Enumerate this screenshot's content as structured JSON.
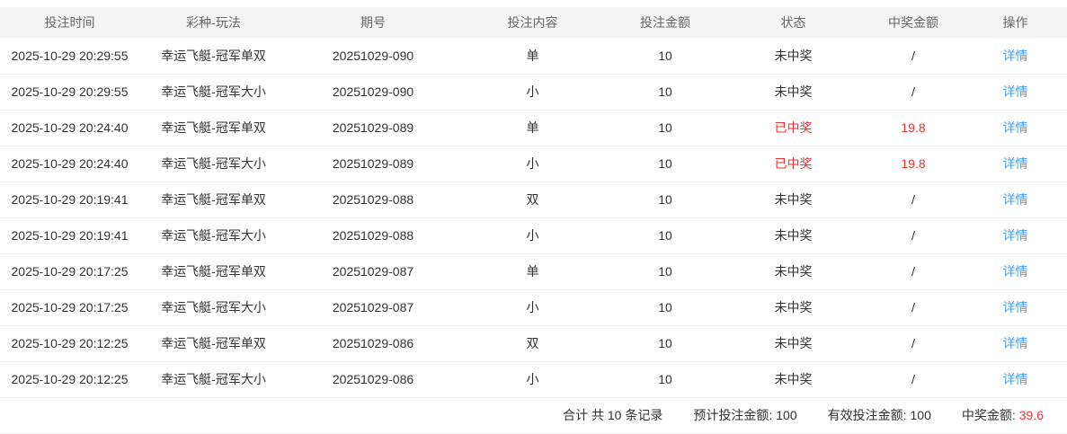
{
  "colors": {
    "win_red": "#f82e2e",
    "link_blue": "#3ba1f6",
    "header_bg": "#f4f4f5"
  },
  "table": {
    "columns": {
      "time": "投注时间",
      "game": "彩种-玩法",
      "issue": "期号",
      "content": "投注内容",
      "amount": "投注金额",
      "status": "状态",
      "prize": "中奖金额",
      "action": "操作"
    },
    "rows": [
      {
        "time": "2025-10-29 20:29:55",
        "game": "幸运飞艇-冠军单双",
        "issue": "20251029-090",
        "content": "单",
        "amount": "10",
        "status": "未中奖",
        "prize": "/",
        "action": "详情",
        "win": false
      },
      {
        "time": "2025-10-29 20:29:55",
        "game": "幸运飞艇-冠军大小",
        "issue": "20251029-090",
        "content": "小",
        "amount": "10",
        "status": "未中奖",
        "prize": "/",
        "action": "详情",
        "win": false
      },
      {
        "time": "2025-10-29 20:24:40",
        "game": "幸运飞艇-冠军单双",
        "issue": "20251029-089",
        "content": "单",
        "amount": "10",
        "status": "已中奖",
        "prize": "19.8",
        "action": "详情",
        "win": true
      },
      {
        "time": "2025-10-29 20:24:40",
        "game": "幸运飞艇-冠军大小",
        "issue": "20251029-089",
        "content": "小",
        "amount": "10",
        "status": "已中奖",
        "prize": "19.8",
        "action": "详情",
        "win": true
      },
      {
        "time": "2025-10-29 20:19:41",
        "game": "幸运飞艇-冠军单双",
        "issue": "20251029-088",
        "content": "双",
        "amount": "10",
        "status": "未中奖",
        "prize": "/",
        "action": "详情",
        "win": false
      },
      {
        "time": "2025-10-29 20:19:41",
        "game": "幸运飞艇-冠军大小",
        "issue": "20251029-088",
        "content": "小",
        "amount": "10",
        "status": "未中奖",
        "prize": "/",
        "action": "详情",
        "win": false
      },
      {
        "time": "2025-10-29 20:17:25",
        "game": "幸运飞艇-冠军单双",
        "issue": "20251029-087",
        "content": "单",
        "amount": "10",
        "status": "未中奖",
        "prize": "/",
        "action": "详情",
        "win": false
      },
      {
        "time": "2025-10-29 20:17:25",
        "game": "幸运飞艇-冠军大小",
        "issue": "20251029-087",
        "content": "小",
        "amount": "10",
        "status": "未中奖",
        "prize": "/",
        "action": "详情",
        "win": false
      },
      {
        "time": "2025-10-29 20:12:25",
        "game": "幸运飞艇-冠军单双",
        "issue": "20251029-086",
        "content": "双",
        "amount": "10",
        "status": "未中奖",
        "prize": "/",
        "action": "详情",
        "win": false
      },
      {
        "time": "2025-10-29 20:12:25",
        "game": "幸运飞艇-冠军大小",
        "issue": "20251029-086",
        "content": "小",
        "amount": "10",
        "status": "未中奖",
        "prize": "/",
        "action": "详情",
        "win": false
      }
    ]
  },
  "summary": {
    "total_text": "合计 共 10 条记录",
    "expected_label": "预计投注金额:",
    "expected_value": "100",
    "valid_label": "有效投注金额:",
    "valid_value": "100",
    "prize_label": "中奖金额:",
    "prize_value": "39.6"
  }
}
